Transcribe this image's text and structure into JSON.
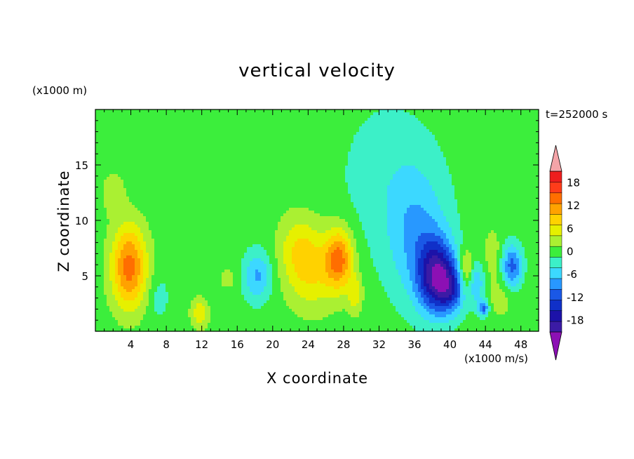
{
  "chart_data": {
    "type": "heatmap",
    "title": "vertical velocity",
    "xlabel": "X coordinate",
    "ylabel": "Z coordinate",
    "x_unit_label": "(x1000 m/s)",
    "y_unit_label": "(x1000 m)",
    "time_label": "t=252000 s",
    "x_ticks": [
      "4",
      "8",
      "12",
      "16",
      "20",
      "24",
      "28",
      "32",
      "36",
      "40",
      "44",
      "48"
    ],
    "x_tick_values": [
      4,
      8,
      12,
      16,
      20,
      24,
      28,
      32,
      36,
      40,
      44,
      48
    ],
    "y_ticks": [
      "5",
      "10",
      "15"
    ],
    "y_tick_values": [
      5,
      10,
      15
    ],
    "xlim": [
      0,
      50
    ],
    "ylim": [
      0,
      20
    ],
    "colorbar": {
      "labels": [
        "18",
        "12",
        "6",
        "0",
        "-6",
        "-12",
        "-18"
      ],
      "label_values": [
        18,
        12,
        6,
        0,
        -6,
        -12,
        -18
      ],
      "levels": [
        -21,
        -18,
        -15,
        -12,
        -9,
        -6,
        -3,
        0,
        3,
        6,
        9,
        12,
        15,
        18,
        21
      ],
      "colors": [
        "#3b1ba5",
        "#1c12a8",
        "#1030c8",
        "#1a58e6",
        "#2898ff",
        "#3cd8ff",
        "#3cf0c8",
        "#3cee3c",
        "#aaf032",
        "#e6f000",
        "#ffd200",
        "#ffa200",
        "#ff6e00",
        "#ff3c1a",
        "#ee1e1e"
      ],
      "over_color": "#f4a4a8",
      "under_color": "#8c10b4"
    },
    "features": [
      {
        "x": 3.8,
        "z": 5.8,
        "value": 15,
        "sx": 1.4,
        "sz": 2.6
      },
      {
        "x": 11.8,
        "z": 1.7,
        "value": 7,
        "sx": 0.7,
        "sz": 1.0
      },
      {
        "x": 13.8,
        "z": 4.5,
        "value": -2,
        "sx": 1.5,
        "sz": 1.3
      },
      {
        "x": 14.8,
        "z": 4.7,
        "value": 5,
        "sx": 0.8,
        "sz": 0.7
      },
      {
        "x": 18.3,
        "z": 5.0,
        "value": -8,
        "sx": 1.1,
        "sz": 1.6
      },
      {
        "x": 24.5,
        "z": 5.5,
        "value": 7,
        "sx": 2.0,
        "sz": 2.6
      },
      {
        "x": 27.5,
        "z": 6.5,
        "value": 14,
        "sx": 1.1,
        "sz": 1.9
      },
      {
        "x": 29.3,
        "z": 3.3,
        "value": 6,
        "sx": 0.6,
        "sz": 1.2
      },
      {
        "x": 22.8,
        "z": 7.5,
        "value": 5,
        "sx": 1.6,
        "sz": 2.2
      },
      {
        "x": 36.3,
        "z": 8.5,
        "value": -7,
        "sx": 2.4,
        "sz": 4.2
      },
      {
        "x": 38.5,
        "z": 5.0,
        "value": -19,
        "sx": 1.5,
        "sz": 2.3
      },
      {
        "x": 40.2,
        "z": 3.8,
        "value": -10,
        "sx": 1.2,
        "sz": 1.5
      },
      {
        "x": 41.8,
        "z": 5.4,
        "value": 8,
        "sx": 0.6,
        "sz": 1.4
      },
      {
        "x": 43.0,
        "z": 4.3,
        "value": -7,
        "sx": 0.6,
        "sz": 1.3
      },
      {
        "x": 43.8,
        "z": 2.1,
        "value": -12,
        "sx": 0.4,
        "sz": 0.5
      },
      {
        "x": 44.8,
        "z": 7.2,
        "value": 4,
        "sx": 0.6,
        "sz": 1.4
      },
      {
        "x": 47.0,
        "z": 5.8,
        "value": -12,
        "sx": 0.8,
        "sz": 1.4
      },
      {
        "x": 45.8,
        "z": 3.2,
        "value": 3,
        "sx": 1.2,
        "sz": 1.5
      },
      {
        "x": 33.0,
        "z": 14.0,
        "value": -3,
        "sx": 4.0,
        "sz": 5.0
      },
      {
        "x": 2.0,
        "z": 12.5,
        "value": 3,
        "sx": 1.0,
        "sz": 1.4
      },
      {
        "x": 7.2,
        "z": 3.0,
        "value": -3,
        "sx": 0.8,
        "sz": 1.5
      }
    ]
  }
}
